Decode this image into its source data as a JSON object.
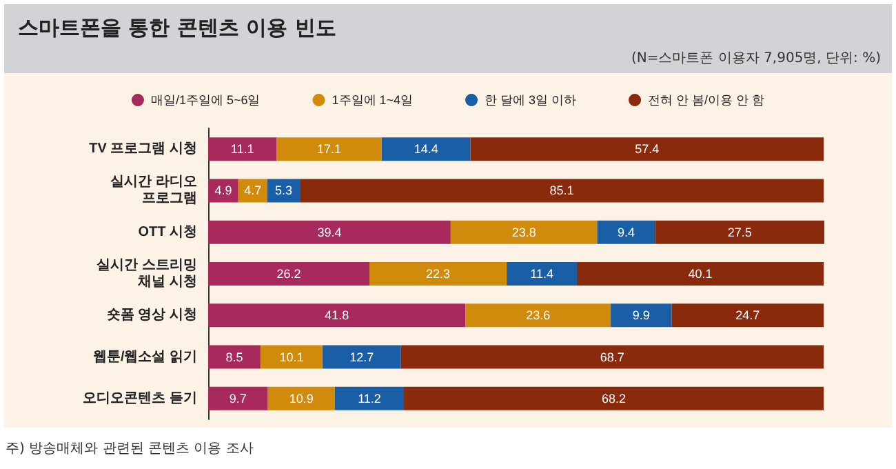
{
  "chart_data": {
    "type": "bar",
    "orientation": "horizontal",
    "stacked": true,
    "title": "스마트폰을 통한 콘텐츠 이용 빈도",
    "subtitle": "(N=스마트폰 이용자 7,905명, 단위: %)",
    "annotations": [
      "주) 방송매체와 관련된 콘텐츠 이용 조사"
    ],
    "categories": [
      "TV 프로그램 시청",
      "실시간 라디오\n프로그램",
      "OTT 시청",
      "실시간 스트리밍\n채널 시청",
      "숏폼 영상 시청",
      "웹툰/웹소설 읽기",
      "오디오콘텐츠 듣기"
    ],
    "series": [
      {
        "name": "매일/1주일에 5~6일",
        "color": "#a82a5c",
        "values": [
          11.1,
          4.9,
          39.4,
          26.2,
          41.8,
          8.5,
          9.7
        ]
      },
      {
        "name": "1주일에 1~4일",
        "color": "#d08b0c",
        "values": [
          17.1,
          4.7,
          23.8,
          22.3,
          23.6,
          10.1,
          10.9
        ]
      },
      {
        "name": "한 달에 3일 이하",
        "color": "#1a5ea6",
        "values": [
          14.4,
          5.3,
          9.4,
          11.4,
          9.9,
          12.7,
          11.2
        ]
      },
      {
        "name": "전혀 안 봄/이용 안 함",
        "color": "#8a2a0c",
        "values": [
          57.4,
          85.1,
          27.5,
          40.1,
          24.7,
          68.7,
          68.2
        ]
      }
    ],
    "data_labels": true,
    "legend": "top"
  }
}
